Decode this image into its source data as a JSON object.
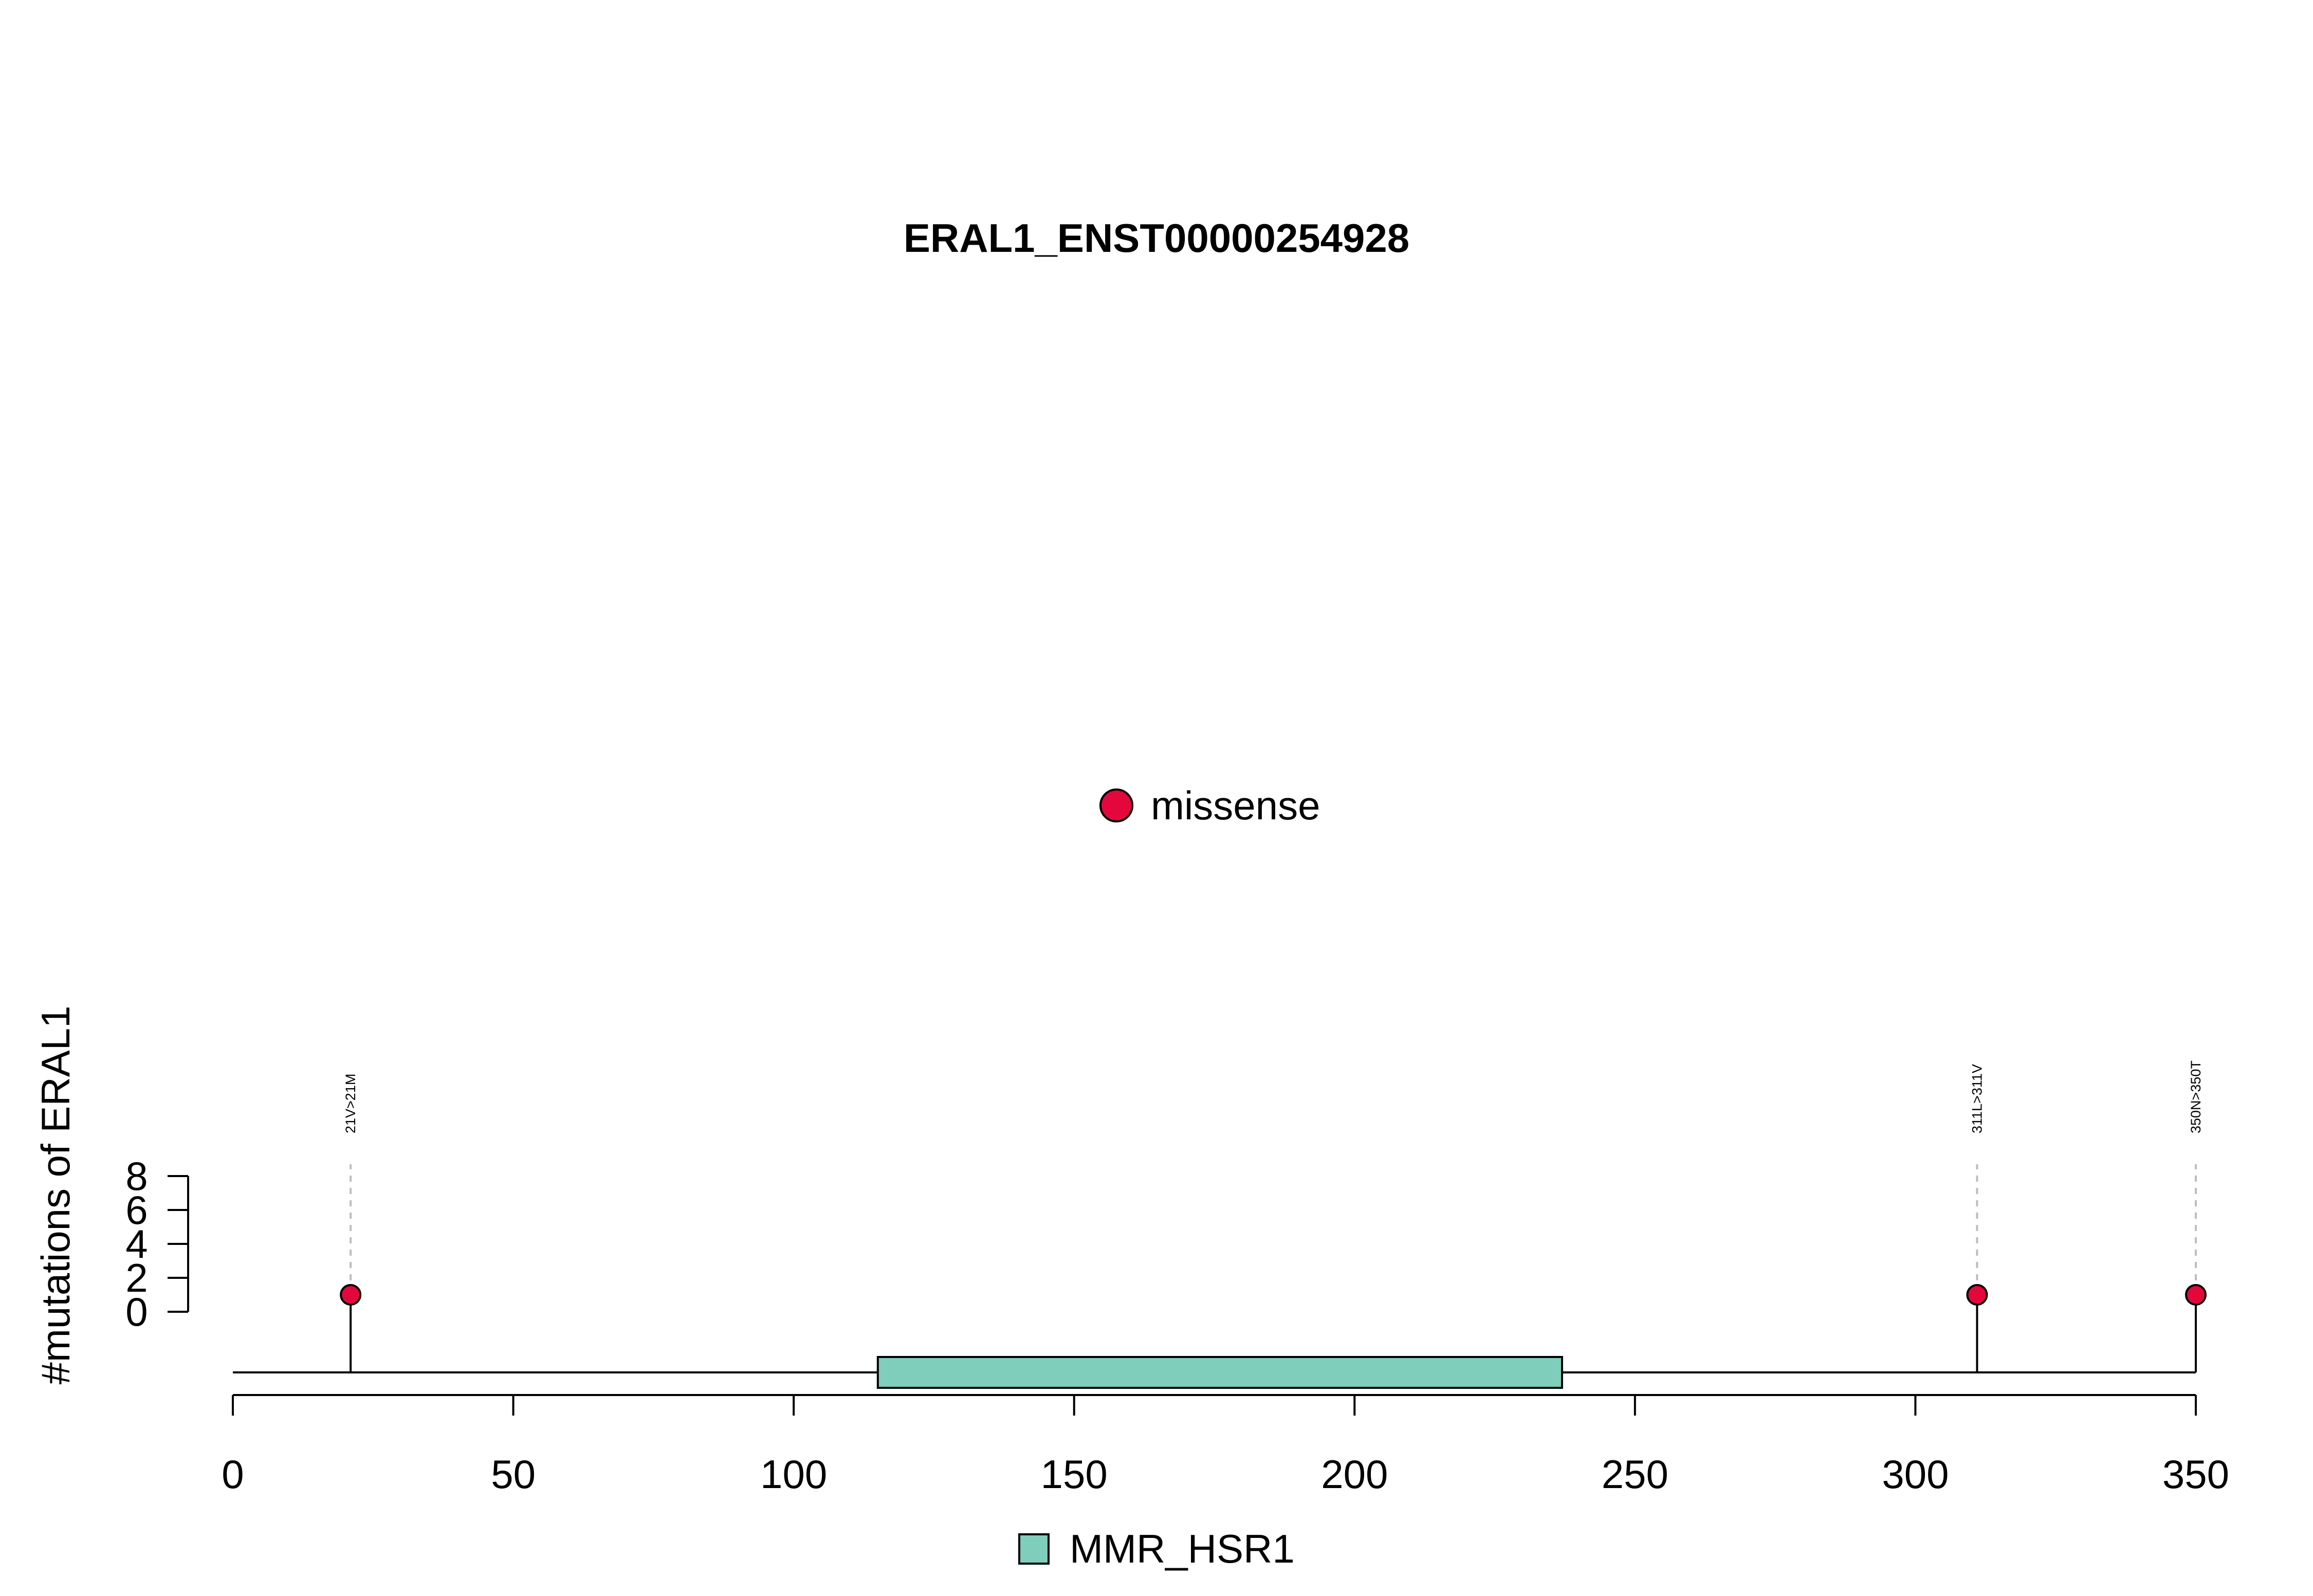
{
  "chart_data": {
    "type": "lollipop",
    "title": "ERAL1_ENST00000254928",
    "ylabel": "#mutations of ERAL1",
    "xlabel": "",
    "xlim": [
      0,
      350
    ],
    "x_ticks": [
      0,
      50,
      100,
      150,
      200,
      250,
      300,
      350
    ],
    "y_ticks": [
      0,
      2,
      4,
      6,
      8
    ],
    "ylim": [
      0,
      8
    ],
    "protein_length": 350,
    "domains": [
      {
        "name": "MMR_HSR1",
        "start": 115,
        "end": 237,
        "color": "#7fcdbb"
      }
    ],
    "mutation_types": [
      {
        "name": "missense",
        "color": "#e3073c"
      }
    ],
    "mutations": [
      {
        "position": 21,
        "label": "21V>21M",
        "count": 1,
        "type": "missense"
      },
      {
        "position": 311,
        "label": "311L>311V",
        "count": 1,
        "type": "missense"
      },
      {
        "position": 350,
        "label": "350N>350T",
        "count": 1,
        "type": "missense"
      }
    ]
  }
}
